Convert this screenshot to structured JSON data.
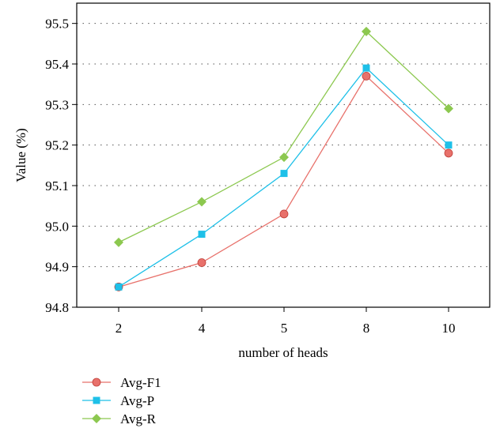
{
  "chart_data": {
    "type": "line",
    "title": "",
    "xlabel": "number of heads",
    "ylabel": "Value (%)",
    "categories": [
      "2",
      "4",
      "5",
      "8",
      "10"
    ],
    "ylim": [
      94.8,
      95.55
    ],
    "yticks": [
      "94.8",
      "94.9",
      "95.0",
      "95.1",
      "95.2",
      "95.3",
      "95.4",
      "95.5"
    ],
    "grid": "horizontal dotted",
    "legend_position": "bottom-left, below plot",
    "series": [
      {
        "name": "Avg-F1",
        "color": "#e8716b",
        "marker": "circle",
        "values": [
          94.85,
          94.91,
          95.03,
          95.37,
          95.18
        ]
      },
      {
        "name": "Avg-P",
        "color": "#1ec0e8",
        "marker": "square",
        "values": [
          94.85,
          94.98,
          95.13,
          95.39,
          95.2
        ]
      },
      {
        "name": "Avg-R",
        "color": "#8cc84f",
        "marker": "diamond",
        "values": [
          94.96,
          95.06,
          95.17,
          95.48,
          95.29
        ]
      }
    ]
  }
}
